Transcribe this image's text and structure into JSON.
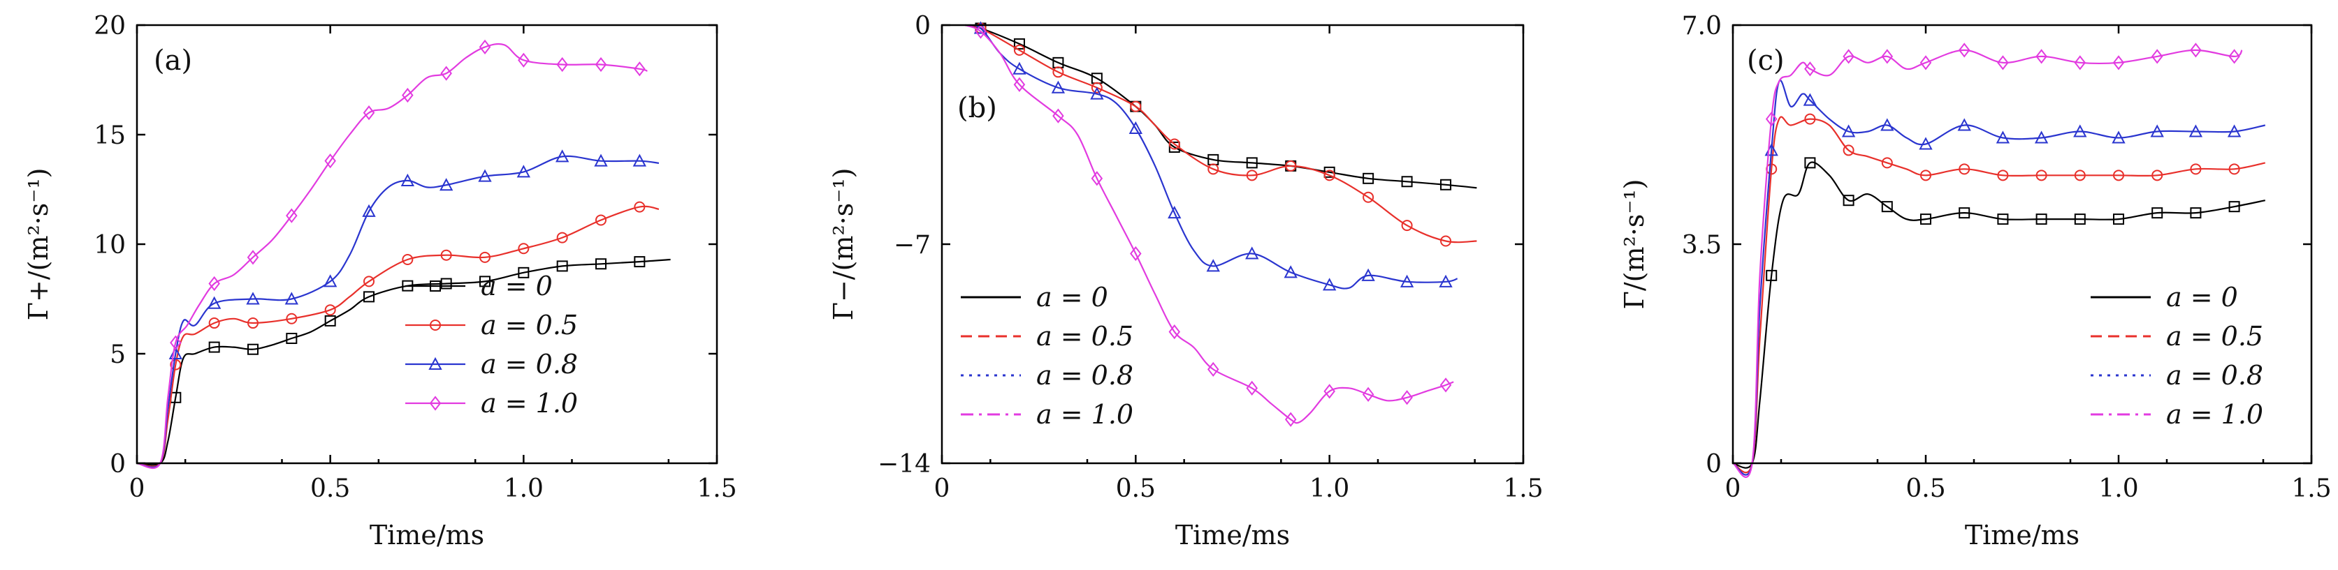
{
  "colors": {
    "a0": "#000000",
    "a05": "#e8302b",
    "a08": "#2a35cf",
    "a10": "#e23be0"
  },
  "chart_data": [
    {
      "type": "line",
      "panel": "(a)",
      "xlabel": "Time/ms",
      "ylabel": "Γ+/(m²·s⁻¹)",
      "xlim": [
        0,
        1.5
      ],
      "ylim": [
        0,
        20
      ],
      "xticks": [
        "0",
        "0.5",
        "1.0",
        "1.5"
      ],
      "yticks": [
        "0",
        "5",
        "10",
        "15",
        "20"
      ],
      "legend_position": "lower-right",
      "legend_style": "line-with-marker",
      "series": [
        {
          "name": "a = 0",
          "key": "a0",
          "marker": "square",
          "x": [
            0,
            0.06,
            0.08,
            0.1,
            0.12,
            0.15,
            0.2,
            0.25,
            0.3,
            0.35,
            0.4,
            0.45,
            0.5,
            0.55,
            0.6,
            0.7,
            0.8,
            0.9,
            1.0,
            1.1,
            1.2,
            1.3,
            1.38
          ],
          "y": [
            0,
            0,
            1.0,
            3.0,
            4.8,
            5.0,
            5.3,
            5.3,
            5.2,
            5.4,
            5.7,
            6.0,
            6.5,
            7.0,
            7.6,
            8.1,
            8.2,
            8.3,
            8.7,
            9.0,
            9.1,
            9.2,
            9.3
          ]
        },
        {
          "name": "a = 0.5",
          "key": "a05",
          "marker": "circle",
          "x": [
            0,
            0.06,
            0.08,
            0.1,
            0.12,
            0.15,
            0.2,
            0.25,
            0.3,
            0.4,
            0.5,
            0.55,
            0.6,
            0.7,
            0.8,
            0.9,
            1.0,
            1.1,
            1.2,
            1.3,
            1.35
          ],
          "y": [
            0,
            0,
            2.0,
            4.5,
            5.8,
            5.9,
            6.4,
            6.6,
            6.4,
            6.6,
            7.0,
            7.6,
            8.3,
            9.3,
            9.5,
            9.4,
            9.8,
            10.3,
            11.1,
            11.7,
            11.6
          ]
        },
        {
          "name": "a = 0.8",
          "key": "a08",
          "marker": "triangle",
          "x": [
            0,
            0.06,
            0.08,
            0.1,
            0.12,
            0.15,
            0.2,
            0.3,
            0.4,
            0.5,
            0.55,
            0.6,
            0.65,
            0.7,
            0.75,
            0.8,
            0.9,
            1.0,
            1.1,
            1.2,
            1.3,
            1.35
          ],
          "y": [
            0,
            0,
            2.5,
            5.0,
            6.5,
            6.3,
            7.3,
            7.5,
            7.5,
            8.3,
            9.5,
            11.5,
            12.6,
            12.9,
            12.6,
            12.7,
            13.1,
            13.3,
            14.0,
            13.8,
            13.8,
            13.7
          ]
        },
        {
          "name": "a = 1.0",
          "key": "a10",
          "marker": "diamond",
          "x": [
            0,
            0.06,
            0.08,
            0.1,
            0.13,
            0.16,
            0.2,
            0.25,
            0.3,
            0.35,
            0.4,
            0.45,
            0.5,
            0.55,
            0.6,
            0.65,
            0.7,
            0.75,
            0.8,
            0.85,
            0.9,
            0.95,
            1.0,
            1.1,
            1.2,
            1.3,
            1.32
          ],
          "y": [
            0,
            0,
            3.0,
            5.5,
            6.3,
            7.2,
            8.2,
            8.6,
            9.4,
            10.2,
            11.3,
            12.5,
            13.8,
            15.0,
            16.0,
            16.2,
            16.8,
            17.6,
            17.8,
            18.5,
            19.0,
            19.1,
            18.4,
            18.2,
            18.2,
            18.0,
            17.9
          ]
        }
      ]
    },
    {
      "type": "line",
      "panel": "(b)",
      "xlabel": "Time/ms",
      "ylabel": "Γ−/(m²·s⁻¹)",
      "xlim": [
        0,
        1.5
      ],
      "ylim": [
        -14,
        0
      ],
      "xticks": [
        "0",
        "0.5",
        "1.0",
        "1.5"
      ],
      "yticks": [
        "0",
        "−7",
        "−14"
      ],
      "legend_position": "lower-left",
      "legend_style": "dashed-lines",
      "series": [
        {
          "name": "a = 0",
          "key": "a0",
          "marker": "square",
          "dash": "solid",
          "x": [
            0.06,
            0.1,
            0.2,
            0.3,
            0.4,
            0.5,
            0.55,
            0.6,
            0.7,
            0.8,
            0.9,
            1.0,
            1.1,
            1.2,
            1.3,
            1.38
          ],
          "y": [
            0,
            -0.1,
            -0.6,
            -1.2,
            -1.7,
            -2.6,
            -3.2,
            -3.9,
            -4.3,
            -4.4,
            -4.5,
            -4.7,
            -4.9,
            -5.0,
            -5.1,
            -5.2
          ]
        },
        {
          "name": "a = 0.5",
          "key": "a05",
          "marker": "circle",
          "dash": "dashed",
          "x": [
            0.06,
            0.1,
            0.2,
            0.3,
            0.4,
            0.5,
            0.55,
            0.6,
            0.7,
            0.8,
            0.9,
            1.0,
            1.1,
            1.2,
            1.3,
            1.38
          ],
          "y": [
            0,
            -0.1,
            -0.8,
            -1.5,
            -2.0,
            -2.6,
            -3.2,
            -3.8,
            -4.6,
            -4.8,
            -4.5,
            -4.8,
            -5.5,
            -6.4,
            -6.9,
            -6.9
          ]
        },
        {
          "name": "a = 0.8",
          "key": "a08",
          "marker": "triangle",
          "dash": "dotted",
          "x": [
            0.06,
            0.1,
            0.15,
            0.2,
            0.3,
            0.4,
            0.45,
            0.5,
            0.55,
            0.6,
            0.65,
            0.7,
            0.8,
            0.9,
            1.0,
            1.05,
            1.1,
            1.2,
            1.3,
            1.33
          ],
          "y": [
            0,
            -0.1,
            -0.9,
            -1.4,
            -2.0,
            -2.2,
            -2.5,
            -3.3,
            -4.5,
            -6.0,
            -7.2,
            -7.7,
            -7.3,
            -7.9,
            -8.3,
            -8.4,
            -8.0,
            -8.2,
            -8.2,
            -8.1
          ]
        },
        {
          "name": "a = 1.0",
          "key": "a10",
          "marker": "diamond",
          "dash": "dashdot",
          "x": [
            0.06,
            0.1,
            0.15,
            0.2,
            0.3,
            0.35,
            0.4,
            0.45,
            0.5,
            0.55,
            0.6,
            0.65,
            0.7,
            0.8,
            0.85,
            0.9,
            0.92,
            0.95,
            1.0,
            1.05,
            1.1,
            1.15,
            1.2,
            1.25,
            1.3,
            1.32
          ],
          "y": [
            0,
            -0.2,
            -0.9,
            -1.9,
            -2.9,
            -3.5,
            -4.9,
            -6.1,
            -7.3,
            -8.6,
            -9.8,
            -10.3,
            -11.0,
            -11.6,
            -12.1,
            -12.6,
            -12.7,
            -12.4,
            -11.7,
            -11.6,
            -11.8,
            -12.0,
            -11.9,
            -11.7,
            -11.5,
            -11.4
          ]
        }
      ]
    },
    {
      "type": "line",
      "panel": "(c)",
      "xlabel": "Time/ms",
      "ylabel": "Γ/(m²·s⁻¹)",
      "xlim": [
        0,
        1.5
      ],
      "ylim": [
        0,
        7.0
      ],
      "xticks": [
        "0",
        "0.5",
        "1.0",
        "1.5"
      ],
      "yticks": [
        "0",
        "3.5",
        "7.0"
      ],
      "legend_position": "lower-right",
      "legend_style": "dashed-lines",
      "series": [
        {
          "name": "a = 0",
          "key": "a0",
          "marker": "square",
          "dash": "solid",
          "x": [
            0,
            0.05,
            0.07,
            0.1,
            0.13,
            0.17,
            0.2,
            0.25,
            0.3,
            0.35,
            0.4,
            0.45,
            0.5,
            0.6,
            0.7,
            0.8,
            0.9,
            1.0,
            1.1,
            1.2,
            1.3,
            1.38
          ],
          "y": [
            0,
            0,
            1.0,
            3.0,
            4.2,
            4.3,
            4.8,
            4.6,
            4.2,
            4.3,
            4.1,
            3.9,
            3.9,
            4.0,
            3.9,
            3.9,
            3.9,
            3.9,
            4.0,
            4.0,
            4.1,
            4.2
          ]
        },
        {
          "name": "a = 0.5",
          "key": "a05",
          "marker": "circle",
          "dash": "dashed",
          "x": [
            0,
            0.05,
            0.07,
            0.1,
            0.12,
            0.15,
            0.2,
            0.25,
            0.3,
            0.35,
            0.4,
            0.45,
            0.5,
            0.6,
            0.7,
            0.8,
            0.9,
            1.0,
            1.1,
            1.2,
            1.3,
            1.38
          ],
          "y": [
            0,
            0,
            2.0,
            4.7,
            5.5,
            5.4,
            5.5,
            5.4,
            5.0,
            4.9,
            4.8,
            4.7,
            4.6,
            4.7,
            4.6,
            4.6,
            4.6,
            4.6,
            4.6,
            4.7,
            4.7,
            4.8
          ]
        },
        {
          "name": "a = 0.8",
          "key": "a08",
          "marker": "triangle",
          "dash": "dotted",
          "x": [
            0,
            0.05,
            0.07,
            0.1,
            0.12,
            0.15,
            0.18,
            0.2,
            0.25,
            0.3,
            0.35,
            0.4,
            0.45,
            0.5,
            0.6,
            0.7,
            0.8,
            0.9,
            1.0,
            1.1,
            1.2,
            1.3,
            1.38
          ],
          "y": [
            0,
            0,
            2.5,
            5.0,
            6.1,
            5.7,
            5.9,
            5.8,
            5.5,
            5.3,
            5.3,
            5.4,
            5.2,
            5.1,
            5.4,
            5.2,
            5.2,
            5.3,
            5.2,
            5.3,
            5.3,
            5.3,
            5.4
          ]
        },
        {
          "name": "a = 1.0",
          "key": "a10",
          "marker": "diamond",
          "dash": "dashdot",
          "x": [
            0,
            0.05,
            0.07,
            0.1,
            0.12,
            0.15,
            0.18,
            0.2,
            0.25,
            0.3,
            0.35,
            0.4,
            0.45,
            0.5,
            0.6,
            0.7,
            0.8,
            0.9,
            1.0,
            1.1,
            1.2,
            1.3,
            1.32
          ],
          "y": [
            0,
            0,
            3.0,
            5.5,
            6.1,
            6.2,
            6.4,
            6.3,
            6.2,
            6.5,
            6.4,
            6.5,
            6.3,
            6.4,
            6.6,
            6.4,
            6.5,
            6.4,
            6.4,
            6.5,
            6.6,
            6.5,
            6.6
          ]
        }
      ]
    }
  ]
}
